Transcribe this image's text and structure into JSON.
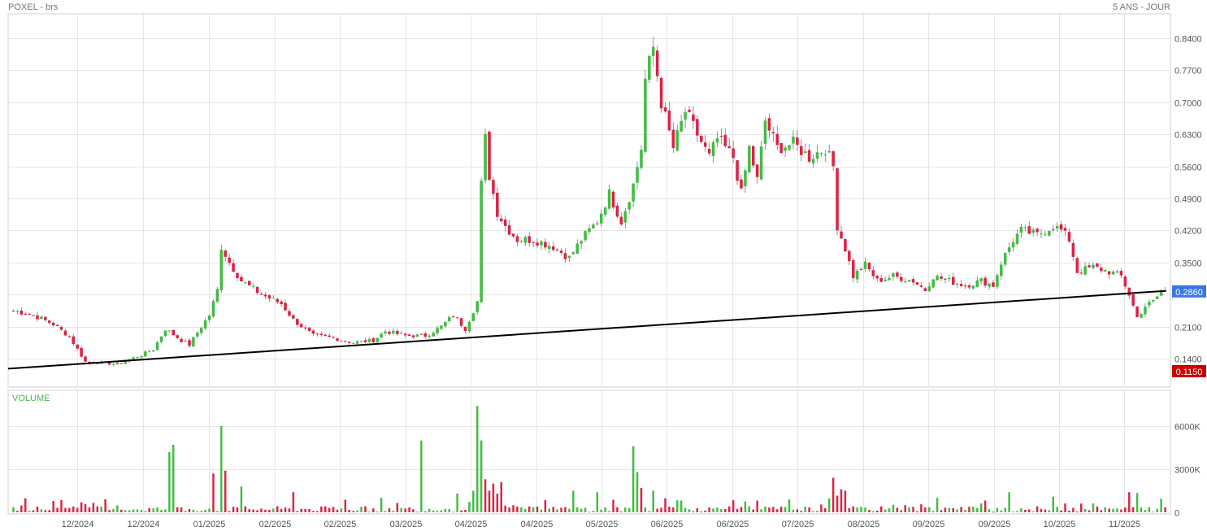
{
  "header": {
    "symbol": "POXEL - brs",
    "range": "5 ANS - JOUR"
  },
  "colors": {
    "up": "#44bb44",
    "down": "#dd2244",
    "grid": "#e6e6e6",
    "axis": "#d0d0d0",
    "last_tag": "#3a77e6",
    "low_tag": "#cc0000",
    "trendline": "#000000"
  },
  "chart_data": [
    {
      "type": "candlestick",
      "title": "",
      "ylim": [
        0.095,
        0.88
      ],
      "y_ticks": [
        "0.8400",
        "0.7700",
        "0.7000",
        "0.6300",
        "0.5600",
        "0.4900",
        "0.4200",
        "0.3500",
        "0.2100",
        "0.1400"
      ],
      "last_price": "0.2860",
      "low_price": "0.1150",
      "x_labels": [
        "12/2024",
        "12/2024",
        "01/2025",
        "02/2025",
        "02/2025",
        "03/2025",
        "04/2025",
        "04/2025",
        "05/2025",
        "06/2025",
        "06/2025",
        "07/2025",
        "08/2025",
        "09/2025",
        "09/2025",
        "10/2025",
        "11/2025"
      ],
      "anchors": [
        {
          "i": 0,
          "c": 0.245
        },
        {
          "i": 5,
          "c": 0.235
        },
        {
          "i": 10,
          "c": 0.215
        },
        {
          "i": 14,
          "c": 0.188
        },
        {
          "i": 18,
          "c": 0.133
        },
        {
          "i": 26,
          "c": 0.128
        },
        {
          "i": 32,
          "c": 0.148
        },
        {
          "i": 35,
          "c": 0.16
        },
        {
          "i": 38,
          "c": 0.205
        },
        {
          "i": 42,
          "c": 0.18
        },
        {
          "i": 44,
          "c": 0.17
        },
        {
          "i": 47,
          "c": 0.21
        },
        {
          "i": 49,
          "c": 0.235
        },
        {
          "i": 51,
          "c": 0.29
        },
        {
          "i": 52,
          "c": 0.385
        },
        {
          "i": 54,
          "c": 0.35
        },
        {
          "i": 57,
          "c": 0.31
        },
        {
          "i": 62,
          "c": 0.28
        },
        {
          "i": 67,
          "c": 0.26
        },
        {
          "i": 70,
          "c": 0.225
        },
        {
          "i": 75,
          "c": 0.19
        },
        {
          "i": 80,
          "c": 0.185
        },
        {
          "i": 85,
          "c": 0.175
        },
        {
          "i": 90,
          "c": 0.18
        },
        {
          "i": 93,
          "c": 0.2
        },
        {
          "i": 98,
          "c": 0.19
        },
        {
          "i": 103,
          "c": 0.19
        },
        {
          "i": 107,
          "c": 0.21
        },
        {
          "i": 110,
          "c": 0.235
        },
        {
          "i": 113,
          "c": 0.205
        },
        {
          "i": 116,
          "c": 0.265
        },
        {
          "i": 117,
          "c": 0.52
        },
        {
          "i": 118,
          "c": 0.62
        },
        {
          "i": 119,
          "c": 0.54
        },
        {
          "i": 121,
          "c": 0.46
        },
        {
          "i": 123,
          "c": 0.43
        },
        {
          "i": 126,
          "c": 0.4
        },
        {
          "i": 130,
          "c": 0.4
        },
        {
          "i": 135,
          "c": 0.385
        },
        {
          "i": 139,
          "c": 0.36
        },
        {
          "i": 142,
          "c": 0.4
        },
        {
          "i": 146,
          "c": 0.44
        },
        {
          "i": 149,
          "c": 0.5
        },
        {
          "i": 152,
          "c": 0.44
        },
        {
          "i": 155,
          "c": 0.52
        },
        {
          "i": 157,
          "c": 0.6
        },
        {
          "i": 158,
          "c": 0.75
        },
        {
          "i": 160,
          "c": 0.82
        },
        {
          "i": 162,
          "c": 0.7
        },
        {
          "i": 165,
          "c": 0.6
        },
        {
          "i": 168,
          "c": 0.68
        },
        {
          "i": 171,
          "c": 0.63
        },
        {
          "i": 174,
          "c": 0.58
        },
        {
          "i": 176,
          "c": 0.62
        },
        {
          "i": 180,
          "c": 0.58
        },
        {
          "i": 182,
          "c": 0.5
        },
        {
          "i": 184,
          "c": 0.6
        },
        {
          "i": 186,
          "c": 0.53
        },
        {
          "i": 188,
          "c": 0.66
        },
        {
          "i": 191,
          "c": 0.6
        },
        {
          "i": 195,
          "c": 0.61
        },
        {
          "i": 199,
          "c": 0.58
        },
        {
          "i": 203,
          "c": 0.6
        },
        {
          "i": 205,
          "c": 0.56
        },
        {
          "i": 206,
          "c": 0.43
        },
        {
          "i": 208,
          "c": 0.38
        },
        {
          "i": 210,
          "c": 0.32
        },
        {
          "i": 213,
          "c": 0.345
        },
        {
          "i": 216,
          "c": 0.31
        },
        {
          "i": 220,
          "c": 0.32
        },
        {
          "i": 225,
          "c": 0.31
        },
        {
          "i": 228,
          "c": 0.29
        },
        {
          "i": 230,
          "c": 0.32
        },
        {
          "i": 234,
          "c": 0.31
        },
        {
          "i": 238,
          "c": 0.3
        },
        {
          "i": 242,
          "c": 0.31
        },
        {
          "i": 245,
          "c": 0.3
        },
        {
          "i": 247,
          "c": 0.35
        },
        {
          "i": 250,
          "c": 0.4
        },
        {
          "i": 252,
          "c": 0.42
        },
        {
          "i": 256,
          "c": 0.41
        },
        {
          "i": 260,
          "c": 0.43
        },
        {
          "i": 262,
          "c": 0.42
        },
        {
          "i": 264,
          "c": 0.4
        },
        {
          "i": 266,
          "c": 0.33
        },
        {
          "i": 270,
          "c": 0.34
        },
        {
          "i": 274,
          "c": 0.33
        },
        {
          "i": 277,
          "c": 0.32
        },
        {
          "i": 279,
          "c": 0.28
        },
        {
          "i": 281,
          "c": 0.23
        },
        {
          "i": 283,
          "c": 0.255
        },
        {
          "i": 285,
          "c": 0.265
        },
        {
          "i": 287,
          "c": 0.286
        }
      ],
      "trendline": {
        "x_start": 0,
        "y_start": 0.118,
        "x_end": 288,
        "y_end": 0.288
      }
    },
    {
      "type": "bar",
      "label": "VOLUME",
      "ylim": [
        0,
        8000
      ],
      "y_ticks": [
        "6000K",
        "3000K",
        "0"
      ],
      "spikes": [
        {
          "i": 39,
          "v": 4200,
          "up": true
        },
        {
          "i": 40,
          "v": 4700,
          "up": true
        },
        {
          "i": 50,
          "v": 2700,
          "up": false
        },
        {
          "i": 52,
          "v": 6000,
          "up": true
        },
        {
          "i": 53,
          "v": 2900,
          "up": false
        },
        {
          "i": 57,
          "v": 1800,
          "up": true
        },
        {
          "i": 70,
          "v": 1400,
          "up": false
        },
        {
          "i": 102,
          "v": 5000,
          "up": true
        },
        {
          "i": 111,
          "v": 1300,
          "up": true
        },
        {
          "i": 115,
          "v": 1500,
          "up": true
        },
        {
          "i": 116,
          "v": 7400,
          "up": true
        },
        {
          "i": 117,
          "v": 5000,
          "up": true
        },
        {
          "i": 118,
          "v": 2300,
          "up": false
        },
        {
          "i": 119,
          "v": 1500,
          "up": false
        },
        {
          "i": 120,
          "v": 2000,
          "up": false
        },
        {
          "i": 121,
          "v": 1300,
          "up": false
        },
        {
          "i": 122,
          "v": 2100,
          "up": false
        },
        {
          "i": 140,
          "v": 1500,
          "up": true
        },
        {
          "i": 146,
          "v": 1400,
          "up": true
        },
        {
          "i": 155,
          "v": 4600,
          "up": true
        },
        {
          "i": 156,
          "v": 2800,
          "up": true
        },
        {
          "i": 157,
          "v": 1700,
          "up": false
        },
        {
          "i": 160,
          "v": 1500,
          "up": true
        },
        {
          "i": 205,
          "v": 2400,
          "up": false
        },
        {
          "i": 207,
          "v": 1600,
          "up": false
        },
        {
          "i": 208,
          "v": 1500,
          "up": false
        },
        {
          "i": 249,
          "v": 1400,
          "up": true
        },
        {
          "i": 279,
          "v": 1400,
          "up": false
        },
        {
          "i": 281,
          "v": 1350,
          "up": true
        }
      ]
    }
  ]
}
